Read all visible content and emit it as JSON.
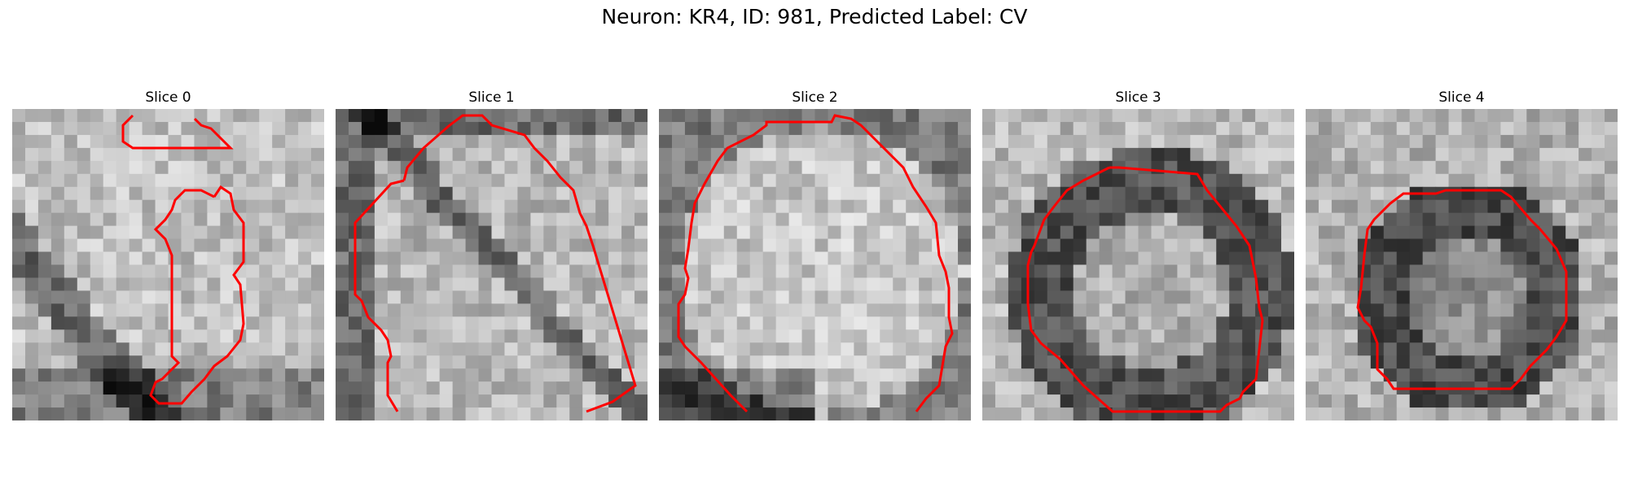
{
  "figure": {
    "title": "Neuron: KR4, ID: 981, Predicted Label: CV"
  },
  "contour_color": "#ff0000",
  "slices": [
    {
      "title": "Slice 0"
    },
    {
      "title": "Slice 1"
    },
    {
      "title": "Slice 2"
    },
    {
      "title": "Slice 3"
    },
    {
      "title": "Slice 4"
    }
  ]
}
